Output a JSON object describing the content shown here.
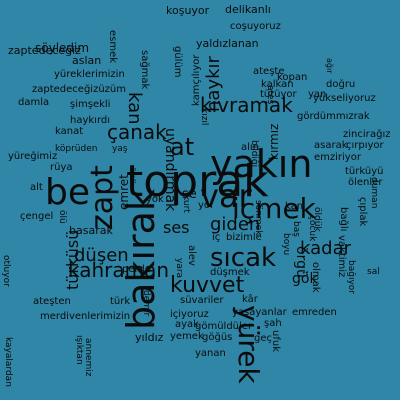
{
  "word_cloud": {
    "background": "#2f86a6",
    "text_color": "#0b0b0b",
    "words": [
      {
        "text": "toprak",
        "rot": 0
      },
      {
        "text": "bakırak",
        "rot": -90
      },
      {
        "text": "yakın",
        "rot": 0
      },
      {
        "text": "var",
        "rot": 0
      },
      {
        "text": "içmek",
        "rot": 0
      },
      {
        "text": "be",
        "rot": 0
      },
      {
        "text": "zapt",
        "rot": -90
      },
      {
        "text": "yürek",
        "rot": 90
      },
      {
        "text": "sıcak",
        "rot": 0
      },
      {
        "text": "kuvvet",
        "rot": 0
      },
      {
        "text": "kahraman",
        "rot": 0
      },
      {
        "text": "kıvramak",
        "rot": 0
      },
      {
        "text": "çanak",
        "rot": 0
      },
      {
        "text": "at",
        "rot": 0
      },
      {
        "text": "haykır",
        "rot": -90
      },
      {
        "text": "kan",
        "rot": 90
      },
      {
        "text": "giden",
        "rot": 0
      },
      {
        "text": "kadar",
        "rot": 0
      },
      {
        "text": "düşen",
        "rot": 0
      },
      {
        "text": "türküsü",
        "rot": -90
      },
      {
        "text": "emret",
        "rot": -90
      },
      {
        "text": "örgü",
        "rot": 90
      },
      {
        "text": "uyandırmak",
        "rot": 90
      },
      {
        "text": "kırmız",
        "rot": -90
      },
      {
        "text": "ses",
        "rot": 0
      },
      {
        "text": "gök",
        "rot": 0
      },
      {
        "text": "se",
        "rot": 0
      },
      {
        "text": "söyledim",
        "rot": 0
      },
      {
        "text": "esmek",
        "rot": 90
      },
      {
        "text": "koşuyor",
        "rot": 0
      },
      {
        "text": "delikanlı",
        "rot": 0
      },
      {
        "text": "coşuyoruz",
        "rot": 0
      },
      {
        "text": "yaldızlanan",
        "rot": 0
      },
      {
        "text": "zaptedeceğiz",
        "rot": 0
      },
      {
        "text": "aslan",
        "rot": 0
      },
      {
        "text": "yüreklerimizin",
        "rot": 0
      },
      {
        "text": "zaptedeceğizüzüm",
        "rot": 0
      },
      {
        "text": "sağmak",
        "rot": 90
      },
      {
        "text": "gülüm",
        "rot": 90
      },
      {
        "text": "damla",
        "rot": 0
      },
      {
        "text": "şimşekli",
        "rot": 0
      },
      {
        "text": "haykırdı",
        "rot": 0
      },
      {
        "text": "köprüden",
        "rot": 0
      },
      {
        "text": "yaş",
        "rot": 0
      },
      {
        "text": "kanat",
        "rot": 0
      },
      {
        "text": "rüya",
        "rot": 0
      },
      {
        "text": "yüreğimiz",
        "rot": 0
      },
      {
        "text": "alt",
        "rot": 0
      },
      {
        "text": "çengel",
        "rot": 0
      },
      {
        "text": "ölü",
        "rot": 90
      },
      {
        "text": "basarak",
        "rot": 0
      },
      {
        "text": "perde",
        "rot": 0
      },
      {
        "text": "ateşten",
        "rot": 0
      },
      {
        "text": "türk",
        "rot": 0
      },
      {
        "text": "merdivenlerimizin",
        "rot": 0
      },
      {
        "text": "kayalardan",
        "rot": 90
      },
      {
        "text": "otluyor",
        "rot": 90
      },
      {
        "text": "annemiz",
        "rot": 90
      },
      {
        "text": "ışıktan",
        "rot": 90
      },
      {
        "text": "yıldız",
        "rot": 0
      },
      {
        "text": "yemek",
        "rot": 0
      },
      {
        "text": "yanan",
        "rot": 0
      },
      {
        "text": "gömüldüler",
        "rot": 0
      },
      {
        "text": "ayak",
        "rot": 0
      },
      {
        "text": "şah",
        "rot": 0
      },
      {
        "text": "göğüs",
        "rot": 0
      },
      {
        "text": "geç",
        "rot": 0
      },
      {
        "text": "yaşayanlar",
        "rot": 0
      },
      {
        "text": "süvariler",
        "rot": 0
      },
      {
        "text": "kâr",
        "rot": 0
      },
      {
        "text": "içiyoruz",
        "rot": 0
      },
      {
        "text": "düşmek",
        "rot": 0
      },
      {
        "text": "emreden",
        "rot": 0
      },
      {
        "text": "kan",
        "rot": 0
      },
      {
        "text": "zincir",
        "rot": 0
      },
      {
        "text": "ağız",
        "rot": 0
      },
      {
        "text": "asarak",
        "rot": 0
      },
      {
        "text": "çırpıyor",
        "rot": 0
      },
      {
        "text": "emziriyor",
        "rot": 0
      },
      {
        "text": "ölenler",
        "rot": 0
      },
      {
        "text": "türküyü",
        "rot": 0
      },
      {
        "text": "yükseliyoruz",
        "rot": 0
      },
      {
        "text": "gördümmızrak",
        "rot": 0
      },
      {
        "text": "doğru",
        "rot": 0
      },
      {
        "text": "kopan",
        "rot": 0
      },
      {
        "text": "kalkan",
        "rot": 0
      },
      {
        "text": "ateşte",
        "rot": 0
      },
      {
        "text": "tütüyor",
        "rot": 0
      },
      {
        "text": "yan",
        "rot": 0
      },
      {
        "text": "kamçılıyor",
        "rot": -90
      },
      {
        "text": "ağır",
        "rot": 90
      },
      {
        "text": "yok",
        "rot": 0
      },
      {
        "text": "alın",
        "rot": 0
      },
      {
        "text": "yol",
        "rot": 0
      },
      {
        "text": "iç",
        "rot": 0
      },
      {
        "text": "bizimle",
        "rot": 0
      },
      {
        "text": "alev",
        "rot": 90
      },
      {
        "text": "yara",
        "rot": 90
      },
      {
        "text": "duman",
        "rot": 90
      },
      {
        "text": "çıplak",
        "rot": 90
      },
      {
        "text": "bağlı",
        "rot": 90
      },
      {
        "text": "vaktimiz",
        "rot": 90
      },
      {
        "text": "olmak",
        "rot": 90
      },
      {
        "text": "ufuk",
        "rot": 90
      },
      {
        "text": "bağıyor",
        "rot": 90
      },
      {
        "text": "kızıl",
        "rot": 90
      },
      {
        "text": "sönmek",
        "rot": 90
      },
      {
        "text": "ateş",
        "rot": 90
      },
      {
        "text": "boyu",
        "rot": 90
      },
      {
        "text": "çocuk",
        "rot": 90
      },
      {
        "text": "baş",
        "rot": 90
      },
      {
        "text": "demir",
        "rot": 90
      },
      {
        "text": "kurt",
        "rot": 90
      },
      {
        "text": "öleli",
        "rot": 90
      },
      {
        "text": "bildiği",
        "rot": 90
      },
      {
        "text": "öldük",
        "rot": 90
      },
      {
        "text": "sal",
        "rot": 0
      }
    ]
  }
}
